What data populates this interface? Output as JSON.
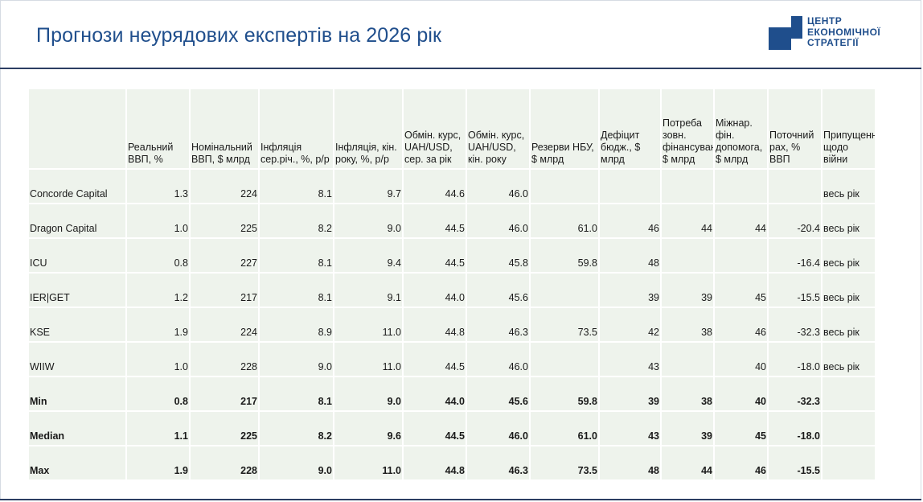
{
  "page": {
    "title": "Прогнози неурядових експертів на 2026 рік"
  },
  "logo": {
    "lines": [
      "ЦЕНТР",
      "ЕКОНОМІЧНОЇ",
      "СТРАТЕГІЇ"
    ],
    "color": "#1f4e8c"
  },
  "table": {
    "headers": [
      "",
      "Реальний ВВП, %",
      "Номінальний ВВП, $ млрд",
      "Інфляція сер.річ., %, р/р",
      "Інфляція, кін. року, %, р/р",
      "Обмін. курс, UAH/USD, сер. за рік",
      "Обмін. курс, UAH/USD, кін. року",
      "Резерви НБУ, $ млрд",
      "Дефіцит бюдж., $ млрд",
      "Потреба зовн. фінансування, $ млрд",
      "Міжнар. фін. допомога, $ млрд",
      "Поточний рах, % ВВП",
      "Припущення щодо війни"
    ],
    "rows": [
      [
        "Concorde Capital",
        "1.3",
        "224",
        "8.1",
        "9.7",
        "44.6",
        "46.0",
        "",
        "",
        "",
        "",
        "",
        "весь рік"
      ],
      [
        "Dragon Capital",
        "1.0",
        "225",
        "8.2",
        "9.0",
        "44.5",
        "46.0",
        "61.0",
        "46",
        "44",
        "44",
        "-20.4",
        "весь рік"
      ],
      [
        "ICU",
        "0.8",
        "227",
        "8.1",
        "9.4",
        "44.5",
        "45.8",
        "59.8",
        "48",
        "",
        "",
        "-16.4",
        "весь рік"
      ],
      [
        "IER|GET",
        "1.2",
        "217",
        "8.1",
        "9.1",
        "44.0",
        "45.6",
        "",
        "39",
        "39",
        "45",
        "-15.5",
        "весь рік"
      ],
      [
        "KSE",
        "1.9",
        "224",
        "8.9",
        "11.0",
        "44.8",
        "46.3",
        "73.5",
        "42",
        "38",
        "46",
        "-32.3",
        "весь рік"
      ],
      [
        "WIIW",
        "1.0",
        "228",
        "9.0",
        "11.0",
        "44.5",
        "46.0",
        "",
        "43",
        "",
        "40",
        "-18.0",
        "весь рік"
      ]
    ],
    "summary": [
      [
        "Min",
        "0.8",
        "217",
        "8.1",
        "9.0",
        "44.0",
        "45.6",
        "59.8",
        "39",
        "38",
        "40",
        "-32.3",
        ""
      ],
      [
        "Median",
        "1.1",
        "225",
        "8.2",
        "9.6",
        "44.5",
        "46.0",
        "61.0",
        "43",
        "39",
        "45",
        "-18.0",
        ""
      ],
      [
        "Max",
        "1.9",
        "228",
        "9.0",
        "11.0",
        "44.8",
        "46.3",
        "73.5",
        "48",
        "44",
        "46",
        "-15.5",
        ""
      ]
    ],
    "cell_color": "#eef3ec"
  }
}
